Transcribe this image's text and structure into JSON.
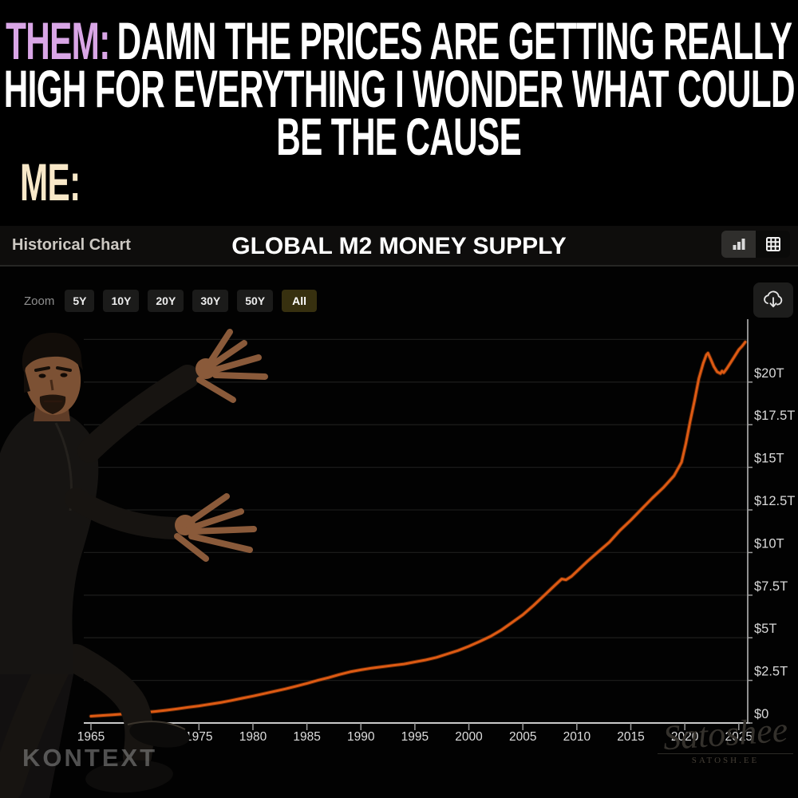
{
  "meme": {
    "them_label": "THEM:",
    "them_text": "DAMN THE PRICES ARE GETTING REALLY",
    "line2": "HIGH FOR EVERYTHING I WONDER WHAT COULD",
    "line3": "BE THE CAUSE",
    "me_label": "ME:",
    "them_color": "#d9a6e6",
    "me_color": "#f8e8c8",
    "text_color": "#ffffff"
  },
  "header": {
    "left_label": "Historical Chart",
    "title": "GLOBAL M2 MONEY SUPPLY",
    "icons": [
      "bar-chart-icon",
      "table-grid-icon"
    ]
  },
  "toolbar": {
    "zoom_label": "Zoom",
    "ranges": [
      "5Y",
      "10Y",
      "20Y",
      "30Y",
      "50Y",
      "All"
    ],
    "active_range": "All",
    "download_icon": "cloud-download-icon"
  },
  "chart_data": {
    "type": "line",
    "title": "GLOBAL M2 MONEY SUPPLY",
    "line_color": "#dd5a13",
    "grid_color": "#1b1b1a",
    "axis_color": "#c9c9c9",
    "label_color": "#d9d9d9",
    "xlim": [
      1964.3,
      2025.9
    ],
    "ylim": [
      0,
      23.7
    ],
    "x_ticks": [
      1965,
      1970,
      1975,
      1980,
      1985,
      1990,
      1995,
      2000,
      2005,
      2010,
      2015,
      2020,
      2025
    ],
    "y_tick_labels": [
      "$20T",
      "$17.5T",
      "$15T",
      "$12.5T",
      "$10T",
      "$7.5T",
      "$5T",
      "$2.5T",
      "$0"
    ],
    "y_tick_values": [
      20,
      17.5,
      15,
      12.5,
      10,
      7.5,
      5,
      2.5,
      0
    ],
    "gridline_values": [
      22.5,
      20,
      17.5,
      15,
      12.5,
      10,
      7.5,
      5,
      2.5
    ],
    "series": [
      {
        "name": "Global M2 Money Supply (trillions USD)",
        "points": [
          [
            1965,
            0.4
          ],
          [
            1966,
            0.44
          ],
          [
            1967,
            0.48
          ],
          [
            1968,
            0.53
          ],
          [
            1969,
            0.57
          ],
          [
            1970,
            0.62
          ],
          [
            1971,
            0.68
          ],
          [
            1972,
            0.75
          ],
          [
            1973,
            0.83
          ],
          [
            1974,
            0.92
          ],
          [
            1975,
            1.0
          ],
          [
            1976,
            1.1
          ],
          [
            1977,
            1.2
          ],
          [
            1978,
            1.32
          ],
          [
            1979,
            1.45
          ],
          [
            1980,
            1.58
          ],
          [
            1981,
            1.72
          ],
          [
            1982,
            1.86
          ],
          [
            1983,
            2.0
          ],
          [
            1984,
            2.16
          ],
          [
            1985,
            2.32
          ],
          [
            1986,
            2.5
          ],
          [
            1987,
            2.66
          ],
          [
            1988,
            2.84
          ],
          [
            1989,
            3.0
          ],
          [
            1990,
            3.12
          ],
          [
            1991,
            3.22
          ],
          [
            1992,
            3.3
          ],
          [
            1993,
            3.38
          ],
          [
            1994,
            3.46
          ],
          [
            1995,
            3.58
          ],
          [
            1996,
            3.7
          ],
          [
            1997,
            3.85
          ],
          [
            1998,
            4.05
          ],
          [
            1999,
            4.25
          ],
          [
            2000,
            4.5
          ],
          [
            2001,
            4.78
          ],
          [
            2002,
            5.08
          ],
          [
            2003,
            5.45
          ],
          [
            2004,
            5.9
          ],
          [
            2005,
            6.35
          ],
          [
            2006,
            6.9
          ],
          [
            2007,
            7.5
          ],
          [
            2008,
            8.1
          ],
          [
            2008.6,
            8.45
          ],
          [
            2009,
            8.4
          ],
          [
            2009.5,
            8.6
          ],
          [
            2010,
            8.9
          ],
          [
            2011,
            9.5
          ],
          [
            2012,
            10.05
          ],
          [
            2013,
            10.6
          ],
          [
            2014,
            11.3
          ],
          [
            2015,
            11.9
          ],
          [
            2016,
            12.55
          ],
          [
            2017,
            13.2
          ],
          [
            2018,
            13.8
          ],
          [
            2019,
            14.5
          ],
          [
            2019.7,
            15.3
          ],
          [
            2020.1,
            16.4
          ],
          [
            2020.5,
            17.7
          ],
          [
            2020.9,
            18.9
          ],
          [
            2021.3,
            20.2
          ],
          [
            2021.7,
            21.1
          ],
          [
            2022.0,
            21.6
          ],
          [
            2022.15,
            21.7
          ],
          [
            2022.4,
            21.35
          ],
          [
            2022.7,
            20.9
          ],
          [
            2023.0,
            20.6
          ],
          [
            2023.3,
            20.5
          ],
          [
            2023.45,
            20.65
          ],
          [
            2023.6,
            20.55
          ],
          [
            2023.9,
            20.8
          ],
          [
            2024.2,
            21.1
          ],
          [
            2024.6,
            21.5
          ],
          [
            2025.0,
            21.9
          ],
          [
            2025.3,
            22.1
          ],
          [
            2025.6,
            22.35
          ]
        ]
      }
    ]
  },
  "watermarks": {
    "kontext": "KONTEXT",
    "signature_script": "Satoshee",
    "signature_caps": "SATOSH.EE"
  },
  "figure": {
    "name": "will-smith-tada-pose"
  }
}
